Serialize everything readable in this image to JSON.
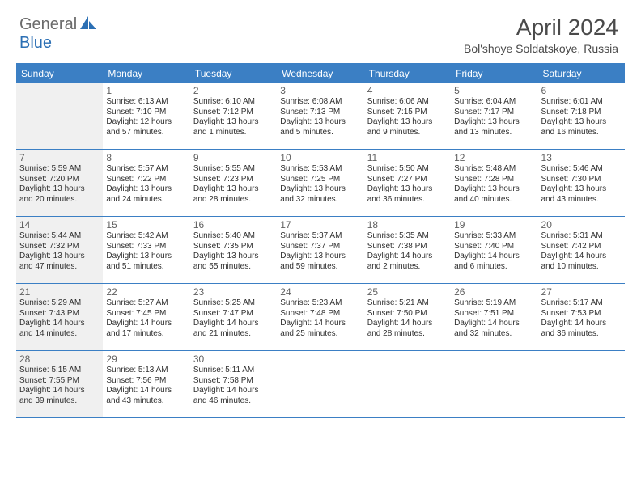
{
  "logo": {
    "text1": "General",
    "text2": "Blue"
  },
  "header": {
    "month_title": "April 2024",
    "location": "Bol'shoye Soldatskoye, Russia"
  },
  "colors": {
    "header_blue": "#3b7fc4",
    "shade_gray": "#f0f0f0",
    "logo_gray": "#6b6b6b",
    "logo_blue": "#2b6fb4"
  },
  "weekdays": [
    "Sunday",
    "Monday",
    "Tuesday",
    "Wednesday",
    "Thursday",
    "Friday",
    "Saturday"
  ],
  "weeks": [
    [
      {
        "num": "",
        "shaded": true,
        "sunrise": "",
        "sunset": "",
        "daylight": ""
      },
      {
        "num": "1",
        "shaded": false,
        "sunrise": "Sunrise: 6:13 AM",
        "sunset": "Sunset: 7:10 PM",
        "daylight": "Daylight: 12 hours and 57 minutes."
      },
      {
        "num": "2",
        "shaded": false,
        "sunrise": "Sunrise: 6:10 AM",
        "sunset": "Sunset: 7:12 PM",
        "daylight": "Daylight: 13 hours and 1 minutes."
      },
      {
        "num": "3",
        "shaded": false,
        "sunrise": "Sunrise: 6:08 AM",
        "sunset": "Sunset: 7:13 PM",
        "daylight": "Daylight: 13 hours and 5 minutes."
      },
      {
        "num": "4",
        "shaded": false,
        "sunrise": "Sunrise: 6:06 AM",
        "sunset": "Sunset: 7:15 PM",
        "daylight": "Daylight: 13 hours and 9 minutes."
      },
      {
        "num": "5",
        "shaded": false,
        "sunrise": "Sunrise: 6:04 AM",
        "sunset": "Sunset: 7:17 PM",
        "daylight": "Daylight: 13 hours and 13 minutes."
      },
      {
        "num": "6",
        "shaded": false,
        "sunrise": "Sunrise: 6:01 AM",
        "sunset": "Sunset: 7:18 PM",
        "daylight": "Daylight: 13 hours and 16 minutes."
      }
    ],
    [
      {
        "num": "7",
        "shaded": true,
        "sunrise": "Sunrise: 5:59 AM",
        "sunset": "Sunset: 7:20 PM",
        "daylight": "Daylight: 13 hours and 20 minutes."
      },
      {
        "num": "8",
        "shaded": false,
        "sunrise": "Sunrise: 5:57 AM",
        "sunset": "Sunset: 7:22 PM",
        "daylight": "Daylight: 13 hours and 24 minutes."
      },
      {
        "num": "9",
        "shaded": false,
        "sunrise": "Sunrise: 5:55 AM",
        "sunset": "Sunset: 7:23 PM",
        "daylight": "Daylight: 13 hours and 28 minutes."
      },
      {
        "num": "10",
        "shaded": false,
        "sunrise": "Sunrise: 5:53 AM",
        "sunset": "Sunset: 7:25 PM",
        "daylight": "Daylight: 13 hours and 32 minutes."
      },
      {
        "num": "11",
        "shaded": false,
        "sunrise": "Sunrise: 5:50 AM",
        "sunset": "Sunset: 7:27 PM",
        "daylight": "Daylight: 13 hours and 36 minutes."
      },
      {
        "num": "12",
        "shaded": false,
        "sunrise": "Sunrise: 5:48 AM",
        "sunset": "Sunset: 7:28 PM",
        "daylight": "Daylight: 13 hours and 40 minutes."
      },
      {
        "num": "13",
        "shaded": false,
        "sunrise": "Sunrise: 5:46 AM",
        "sunset": "Sunset: 7:30 PM",
        "daylight": "Daylight: 13 hours and 43 minutes."
      }
    ],
    [
      {
        "num": "14",
        "shaded": true,
        "sunrise": "Sunrise: 5:44 AM",
        "sunset": "Sunset: 7:32 PM",
        "daylight": "Daylight: 13 hours and 47 minutes."
      },
      {
        "num": "15",
        "shaded": false,
        "sunrise": "Sunrise: 5:42 AM",
        "sunset": "Sunset: 7:33 PM",
        "daylight": "Daylight: 13 hours and 51 minutes."
      },
      {
        "num": "16",
        "shaded": false,
        "sunrise": "Sunrise: 5:40 AM",
        "sunset": "Sunset: 7:35 PM",
        "daylight": "Daylight: 13 hours and 55 minutes."
      },
      {
        "num": "17",
        "shaded": false,
        "sunrise": "Sunrise: 5:37 AM",
        "sunset": "Sunset: 7:37 PM",
        "daylight": "Daylight: 13 hours and 59 minutes."
      },
      {
        "num": "18",
        "shaded": false,
        "sunrise": "Sunrise: 5:35 AM",
        "sunset": "Sunset: 7:38 PM",
        "daylight": "Daylight: 14 hours and 2 minutes."
      },
      {
        "num": "19",
        "shaded": false,
        "sunrise": "Sunrise: 5:33 AM",
        "sunset": "Sunset: 7:40 PM",
        "daylight": "Daylight: 14 hours and 6 minutes."
      },
      {
        "num": "20",
        "shaded": false,
        "sunrise": "Sunrise: 5:31 AM",
        "sunset": "Sunset: 7:42 PM",
        "daylight": "Daylight: 14 hours and 10 minutes."
      }
    ],
    [
      {
        "num": "21",
        "shaded": true,
        "sunrise": "Sunrise: 5:29 AM",
        "sunset": "Sunset: 7:43 PM",
        "daylight": "Daylight: 14 hours and 14 minutes."
      },
      {
        "num": "22",
        "shaded": false,
        "sunrise": "Sunrise: 5:27 AM",
        "sunset": "Sunset: 7:45 PM",
        "daylight": "Daylight: 14 hours and 17 minutes."
      },
      {
        "num": "23",
        "shaded": false,
        "sunrise": "Sunrise: 5:25 AM",
        "sunset": "Sunset: 7:47 PM",
        "daylight": "Daylight: 14 hours and 21 minutes."
      },
      {
        "num": "24",
        "shaded": false,
        "sunrise": "Sunrise: 5:23 AM",
        "sunset": "Sunset: 7:48 PM",
        "daylight": "Daylight: 14 hours and 25 minutes."
      },
      {
        "num": "25",
        "shaded": false,
        "sunrise": "Sunrise: 5:21 AM",
        "sunset": "Sunset: 7:50 PM",
        "daylight": "Daylight: 14 hours and 28 minutes."
      },
      {
        "num": "26",
        "shaded": false,
        "sunrise": "Sunrise: 5:19 AM",
        "sunset": "Sunset: 7:51 PM",
        "daylight": "Daylight: 14 hours and 32 minutes."
      },
      {
        "num": "27",
        "shaded": false,
        "sunrise": "Sunrise: 5:17 AM",
        "sunset": "Sunset: 7:53 PM",
        "daylight": "Daylight: 14 hours and 36 minutes."
      }
    ],
    [
      {
        "num": "28",
        "shaded": true,
        "sunrise": "Sunrise: 5:15 AM",
        "sunset": "Sunset: 7:55 PM",
        "daylight": "Daylight: 14 hours and 39 minutes."
      },
      {
        "num": "29",
        "shaded": false,
        "sunrise": "Sunrise: 5:13 AM",
        "sunset": "Sunset: 7:56 PM",
        "daylight": "Daylight: 14 hours and 43 minutes."
      },
      {
        "num": "30",
        "shaded": false,
        "sunrise": "Sunrise: 5:11 AM",
        "sunset": "Sunset: 7:58 PM",
        "daylight": "Daylight: 14 hours and 46 minutes."
      },
      {
        "num": "",
        "shaded": false,
        "sunrise": "",
        "sunset": "",
        "daylight": ""
      },
      {
        "num": "",
        "shaded": false,
        "sunrise": "",
        "sunset": "",
        "daylight": ""
      },
      {
        "num": "",
        "shaded": false,
        "sunrise": "",
        "sunset": "",
        "daylight": ""
      },
      {
        "num": "",
        "shaded": false,
        "sunrise": "",
        "sunset": "",
        "daylight": ""
      }
    ]
  ]
}
